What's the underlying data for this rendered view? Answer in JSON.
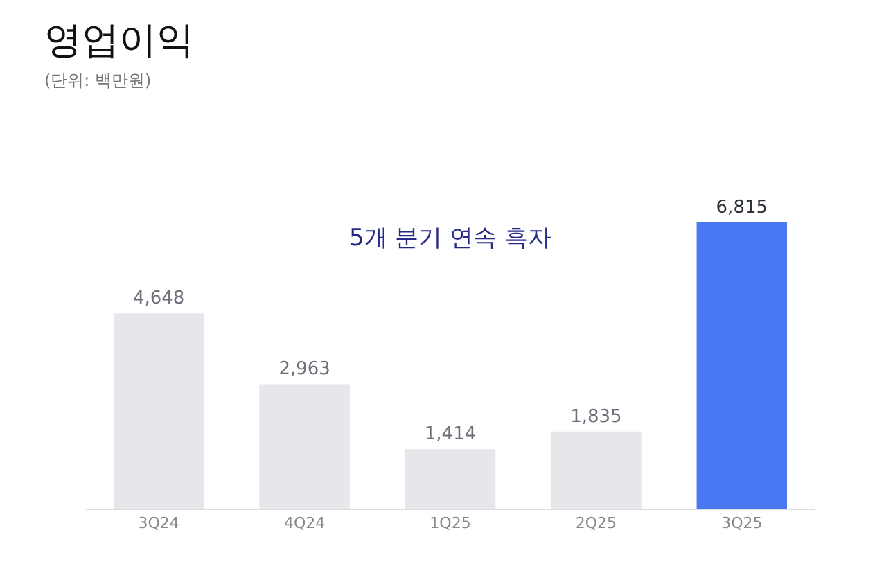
{
  "chart_data": {
    "type": "bar",
    "title": "영업이익",
    "subtitle": "(단위: 백만원)",
    "annotations": [
      "5개 분기 연속 흑자"
    ],
    "categories": [
      "3Q24",
      "4Q24",
      "1Q25",
      "2Q25",
      "3Q25"
    ],
    "values": [
      4648,
      2963,
      1414,
      1835,
      6815
    ],
    "value_labels": [
      "4,648",
      "2,963",
      "1,414",
      "1,835",
      "6,815"
    ],
    "colors": [
      "#e6e7eb",
      "#e6e7eb",
      "#e6e7eb",
      "#e6e7eb",
      "#4a78f5"
    ]
  }
}
